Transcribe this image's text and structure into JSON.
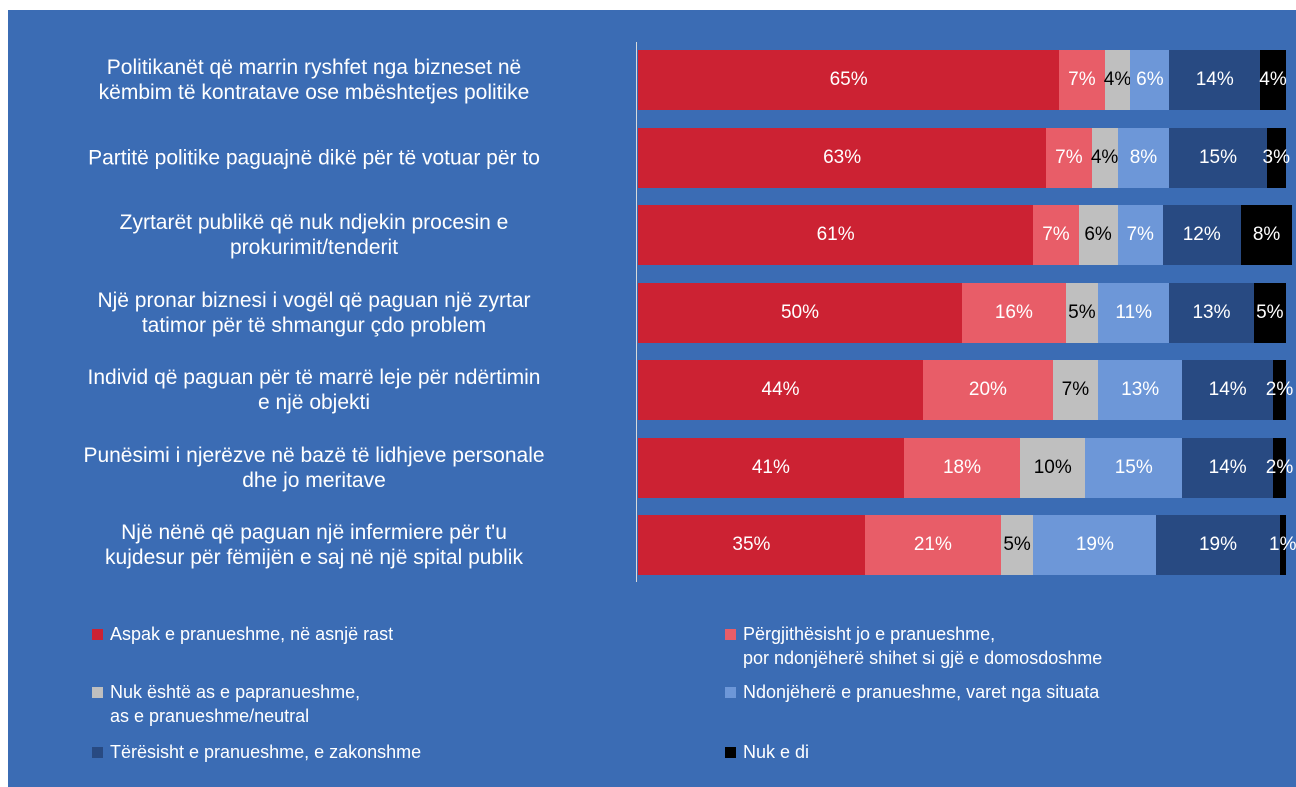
{
  "chart_data": {
    "type": "bar",
    "orientation": "horizontal",
    "stacked": true,
    "categories": [
      "Politikanët që marrin ryshfet nga bizneset në\nkëmbim të kontratave ose mbështetjes politike",
      "Partitë politike paguajnë dikë për të votuar për to",
      "Zyrtarët publikë që nuk ndjekin procesin e\nprokurimit/tenderit",
      "Një pronar biznesi i vogël që paguan një zyrtar\ntatimor për të shmangur çdo problem",
      "Individ që paguan për të marrë leje për ndërtimin\ne një objekti",
      "Punësimi i njerëzve në bazë të lidhjeve personale\ndhe jo meritave",
      "Një nënë që paguan një infermiere për t'u\nkujdesur për fëmijën e saj në një spital publik"
    ],
    "xlim": [
      0,
      100
    ],
    "series": [
      {
        "name": "Aspak e pranueshme, në asnjë rast",
        "color": "#cc2233",
        "label_color": "#ffffff",
        "values": [
          65,
          63,
          61,
          50,
          44,
          41,
          35
        ],
        "value_labels": [
          "65%",
          "63%",
          "61%",
          "50%",
          "44%",
          "41%",
          "35%"
        ]
      },
      {
        "name": "Përgjithësisht jo e pranueshme,\n por ndonjëherë shihet si gjë e domosdoshme",
        "color": "#e85d68",
        "label_color": "#ffffff",
        "values": [
          7,
          7,
          7,
          16,
          20,
          18,
          21
        ],
        "value_labels": [
          "7%",
          "7%",
          "7%",
          "16%",
          "20%",
          "18%",
          "21%"
        ]
      },
      {
        "name": "Nuk është as e papranueshme,\n as e pranueshme/neutral",
        "color": "#bfbfbf",
        "label_color": "#000000",
        "values": [
          4,
          4,
          6,
          5,
          7,
          10,
          5
        ],
        "value_labels": [
          "4%",
          "4%",
          "6%",
          "5%",
          "7%",
          "10%",
          "5%"
        ]
      },
      {
        "name": "Ndonjëherë e pranueshme, varet nga situata",
        "color": "#6d97d8",
        "label_color": "#ffffff",
        "values": [
          6,
          8,
          7,
          11,
          13,
          15,
          19
        ],
        "value_labels": [
          "6%",
          "8%",
          "7%",
          "11%",
          "13%",
          "15%",
          "19%"
        ]
      },
      {
        "name": "Tërësisht e pranueshme, e zakonshme",
        "color": "#284a82",
        "label_color": "#ffffff",
        "values": [
          14,
          15,
          12,
          13,
          14,
          14,
          19
        ],
        "value_labels": [
          "14%",
          "15%",
          "12%",
          "13%",
          "14%",
          "14%",
          "19%"
        ]
      },
      {
        "name": "Nuk e di",
        "color": "#000000",
        "label_color": "#ffffff",
        "values": [
          4,
          3,
          8,
          5,
          2,
          2,
          1
        ],
        "value_labels": [
          "4%",
          "3%",
          "8%",
          "5%",
          "2%",
          "2%",
          "1%"
        ]
      }
    ]
  }
}
